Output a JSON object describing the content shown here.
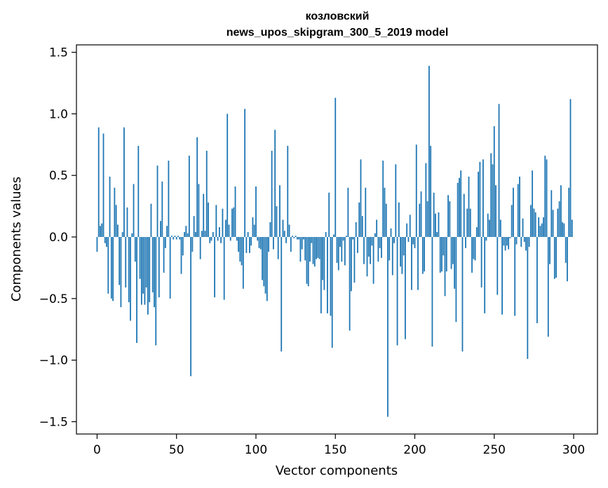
{
  "chart_data": {
    "type": "bar",
    "title": "козловский",
    "subtitle": "news_upos_skipgram_300_5_2019 model",
    "xlabel": "Vector components",
    "ylabel": "Components values",
    "xlim": [
      -13,
      315
    ],
    "ylim": [
      -1.6,
      1.56
    ],
    "xticks": [
      0,
      50,
      100,
      150,
      200,
      250,
      300
    ],
    "yticks": [
      -1.5,
      -1.0,
      -0.5,
      0.0,
      0.5,
      1.0,
      1.5
    ],
    "xtick_labels": [
      "0",
      "50",
      "100",
      "150",
      "200",
      "250",
      "300"
    ],
    "ytick_labels": [
      "−1.5",
      "−1.0",
      "−0.5",
      "0.0",
      "0.5",
      "1.0",
      "1.5"
    ],
    "grid": false,
    "color": "#1f77b4",
    "values": [
      -0.12,
      0.89,
      0.09,
      0.11,
      0.84,
      -0.05,
      -0.08,
      -0.46,
      0.49,
      -0.5,
      -0.52,
      0.4,
      0.26,
      0.1,
      -0.39,
      -0.57,
      0.04,
      0.89,
      -0.41,
      0.24,
      -0.53,
      -0.68,
      0.03,
      0.43,
      -0.2,
      -0.86,
      0.74,
      -0.34,
      -0.55,
      -0.46,
      -0.55,
      -0.41,
      -0.63,
      -0.53,
      0.27,
      -0.45,
      -0.57,
      -0.88,
      0.58,
      -0.49,
      0.13,
      0.45,
      -0.29,
      -0.09,
      0.09,
      0.62,
      -0.5,
      0.01,
      -0.02,
      0.01,
      -0.02,
      0.01,
      -0.02,
      -0.3,
      -0.15,
      0.04,
      0.09,
      0.03,
      0.66,
      -1.13,
      -0.12,
      0.17,
      0.04,
      0.81,
      0.43,
      -0.18,
      0.05,
      0.35,
      0.05,
      0.7,
      0.28,
      -0.05,
      -0.03,
      0.04,
      -0.49,
      0.26,
      -0.03,
      0.08,
      -0.05,
      0.23,
      -0.51,
      0.14,
      1.0,
      0.1,
      -0.03,
      0.23,
      0.24,
      0.41,
      -0.03,
      -0.12,
      -0.2,
      -0.23,
      -0.42,
      1.04,
      -0.13,
      0.04,
      -0.13,
      -0.07,
      0.16,
      0.1,
      0.41,
      -0.03,
      -0.09,
      -0.1,
      -0.35,
      -0.4,
      -0.46,
      -0.52,
      -0.12,
      0.12,
      0.7,
      -0.1,
      0.87,
      0.25,
      -0.18,
      0.42,
      -0.93,
      0.14,
      0.05,
      -0.05,
      0.74,
      0.1,
      -0.12,
      0.01,
      -0.01,
      0.01,
      -0.02,
      -0.02,
      -0.2,
      -0.1,
      -0.02,
      -0.19,
      -0.38,
      -0.4,
      -0.2,
      -0.05,
      -0.22,
      -0.24,
      -0.18,
      -0.17,
      -0.18,
      -0.62,
      -0.35,
      -0.43,
      0.04,
      -0.62,
      0.36,
      -0.64,
      -0.9,
      0.02,
      1.13,
      -0.21,
      -0.27,
      -0.08,
      -0.2,
      -0.03,
      -0.23,
      0.01,
      0.4,
      -0.76,
      -0.44,
      -0.02,
      -0.37,
      0.12,
      -0.13,
      0.28,
      0.63,
      0.17,
      -0.22,
      0.4,
      -0.32,
      -0.16,
      -0.22,
      -0.07,
      -0.38,
      0.03,
      0.14,
      -0.2,
      -0.09,
      -0.17,
      0.62,
      0.4,
      0.27,
      -1.46,
      -0.19,
      0.07,
      -0.31,
      -0.05,
      0.59,
      -0.88,
      0.28,
      -0.24,
      -0.3,
      -0.15,
      -0.83,
      0.11,
      -0.04,
      0.18,
      -0.43,
      -0.06,
      -0.09,
      0.75,
      -0.43,
      0.27,
      0.37,
      -0.3,
      -0.28,
      0.6,
      0.29,
      1.39,
      0.74,
      -0.89,
      0.36,
      0.19,
      0.04,
      0.2,
      -0.29,
      -0.28,
      -0.15,
      -0.48,
      -0.28,
      0.34,
      0.29,
      -0.26,
      -0.22,
      -0.42,
      -0.69,
      0.44,
      0.48,
      0.54,
      -0.93,
      0.35,
      -0.09,
      0.23,
      0.49,
      0.23,
      -0.29,
      -0.18,
      -0.19,
      0.08,
      0.53,
      0.61,
      -0.41,
      0.63,
      -0.62,
      -0.03,
      0.19,
      0.14,
      0.68,
      0.59,
      0.9,
      0.42,
      -0.47,
      1.08,
      0.14,
      -0.63,
      -0.07,
      -0.11,
      -0.07,
      -0.1,
      -0.01,
      0.26,
      0.4,
      -0.64,
      -0.06,
      0.43,
      0.49,
      -0.08,
      0.15,
      -0.04,
      -0.11,
      -0.99,
      -0.08,
      0.26,
      0.54,
      0.23,
      0.2,
      -0.7,
      0.16,
      0.09,
      0.11,
      0.16,
      0.66,
      0.63,
      -0.81,
      -0.22,
      0.38,
      0.22,
      -0.34,
      -0.33,
      0.23,
      0.29,
      0.42,
      0.12,
      0.11,
      -0.21,
      -0.36,
      0.4,
      1.12,
      0.14
    ]
  }
}
